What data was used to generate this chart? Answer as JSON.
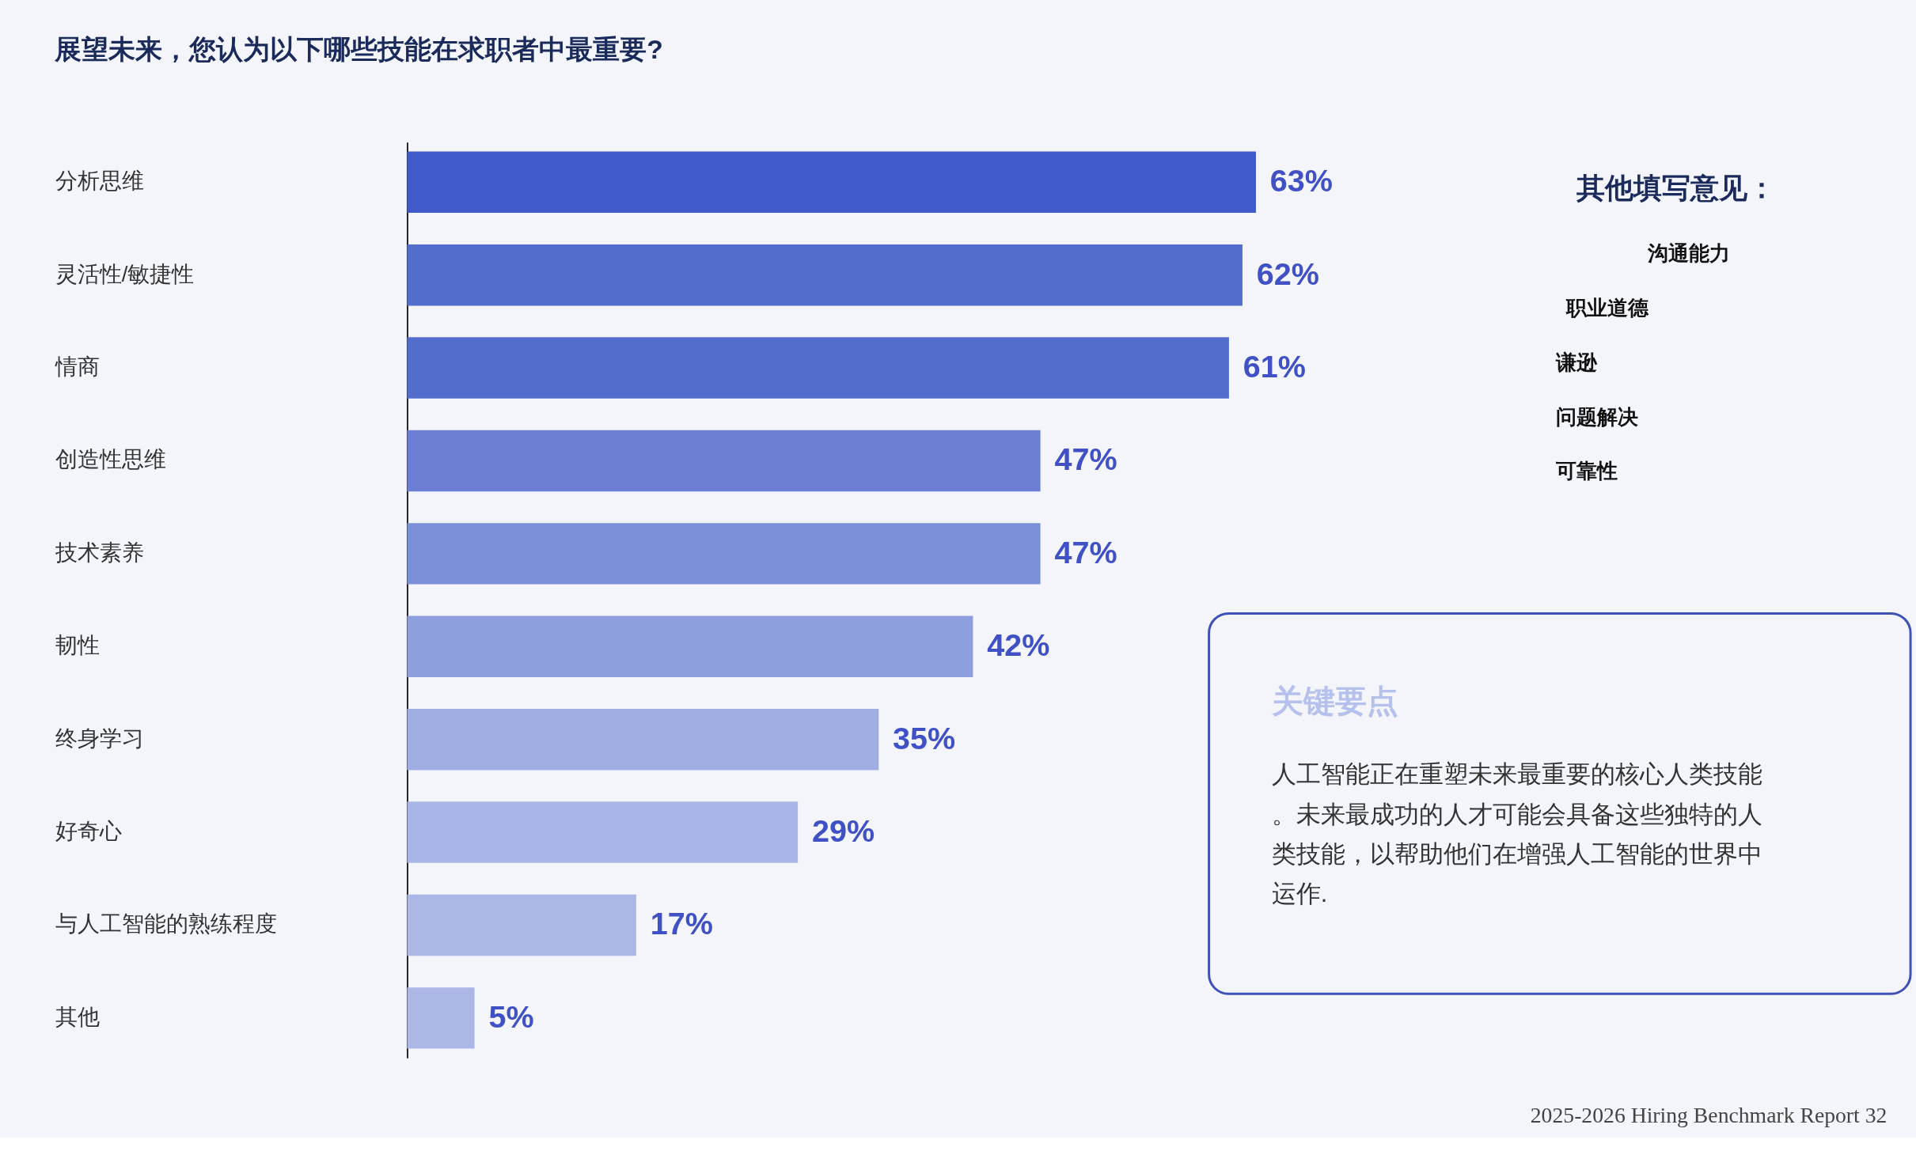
{
  "chart_data": {
    "type": "bar",
    "orientation": "horizontal",
    "title": "展望未来，您认为以下哪些技能在求职者中最重要?",
    "categories": [
      "分析思维",
      "灵活性/敏捷性",
      "情商",
      "创造性思维",
      "技术素养",
      "韧性",
      "终身学习",
      "好奇心",
      "与人工智能的熟练程度",
      "其他"
    ],
    "values": [
      63,
      62,
      61,
      47,
      47,
      42,
      35,
      29,
      17,
      5
    ],
    "value_labels": [
      "63%",
      "62%",
      "61%",
      "47%",
      "47%",
      "42%",
      "35%",
      "29%",
      "17%",
      "5%"
    ],
    "colors": [
      "#405bc9",
      "#536dcc",
      "#536dcc",
      "#6a7fd3",
      "#7b8fd9",
      "#8e9fdd",
      "#a0ade3",
      "#a9b5e6",
      "#acb7e6",
      "#acb7e6"
    ],
    "annotations": [
      "其他填写意见：",
      "沟通能力",
      "职业道德",
      "谦逊",
      "问题解决",
      "可靠性",
      "关键要点",
      "人工智能正在重塑未来最重要的核心人类技能。未来最成功的人才可能会具备这些独特的人类技能，以帮助他们在增强人工智能的世界中运作.",
      "2025-2026 Hiring Benchmark Report 32"
    ]
  }
}
